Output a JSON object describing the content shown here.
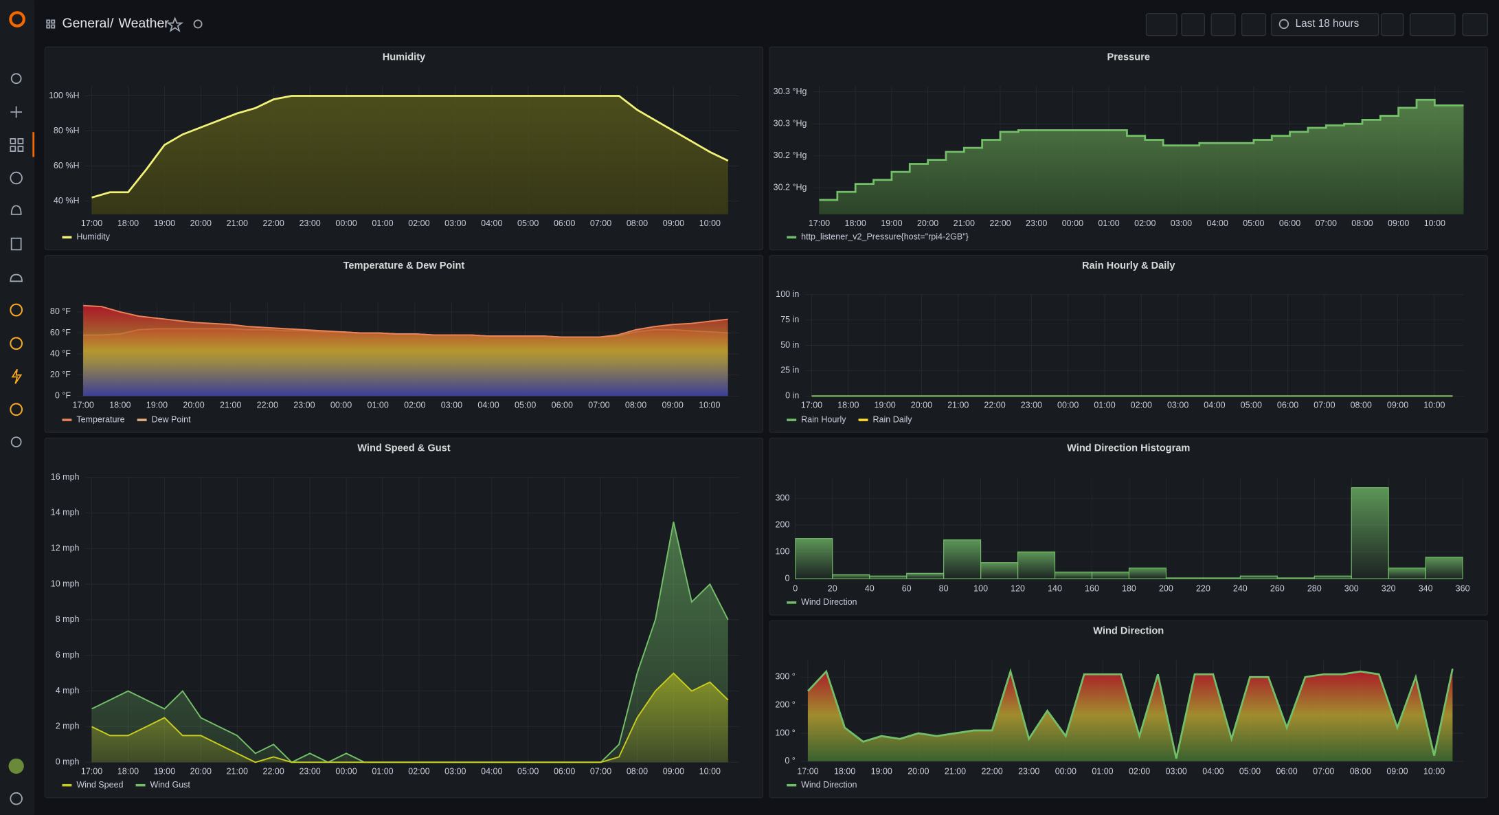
{
  "header": {
    "folder": "General",
    "separator": "/",
    "title": "Weather",
    "time_range": "Last 18 hours"
  },
  "chart_data": [
    {
      "type": "line",
      "title": "Humidity",
      "categories": [
        "17:00",
        null,
        "18:00",
        null,
        "19:00",
        null,
        "20:00",
        null,
        "21:00",
        null,
        "22:00",
        null,
        "23:00",
        null,
        "00:00",
        null,
        "01:00",
        null,
        "02:00",
        null,
        "03:00",
        null,
        "04:00",
        null,
        "05:00",
        null,
        "06:00",
        null,
        "07:00",
        null,
        "08:00",
        null,
        "09:00",
        null,
        "10:00",
        null
      ],
      "series": [
        {
          "name": "Humidity",
          "color": "#F2F27A",
          "values": [
            42,
            45,
            45,
            58,
            72,
            78,
            82,
            86,
            90,
            93,
            98,
            100,
            100,
            100,
            100,
            100,
            100,
            100,
            100,
            100,
            100,
            100,
            100,
            100,
            100,
            100,
            100,
            100,
            100,
            100,
            92,
            86,
            80,
            74,
            68,
            63
          ]
        }
      ],
      "ylim": [
        32.4,
        105.5
      ],
      "yticks": [
        {
          "value": 40,
          "label": "40 %H"
        },
        {
          "value": 60,
          "label": "60 %H"
        },
        {
          "value": 80,
          "label": "80 %H"
        },
        {
          "value": 100,
          "label": "100 %H"
        }
      ],
      "fill_gradient": [
        "#55561c",
        "#3b3c15"
      ],
      "grid": true
    },
    {
      "type": "line",
      "title": "Pressure",
      "categories": [
        "17:00",
        null,
        "18:00",
        null,
        "19:00",
        null,
        "20:00",
        null,
        "21:00",
        null,
        "22:00",
        null,
        "23:00",
        null,
        "00:00",
        null,
        "01:00",
        null,
        "02:00",
        null,
        "03:00",
        null,
        "04:00",
        null,
        "05:00",
        null,
        "06:00",
        null,
        "07:00",
        null,
        "08:00",
        null,
        "09:00",
        null,
        "10:00",
        null
      ],
      "series": [
        {
          "name": "http_listener_v2_Pressure{host=\"rpi4-2GB\"}",
          "color": "#73BF69",
          "values": [
            30.165,
            30.175,
            30.185,
            30.19,
            30.2,
            30.21,
            30.215,
            30.225,
            30.23,
            30.24,
            30.25,
            30.252,
            30.252,
            30.252,
            30.252,
            30.252,
            30.252,
            30.245,
            30.24,
            30.233,
            30.233,
            30.236,
            30.236,
            30.236,
            30.24,
            30.245,
            30.25,
            30.255,
            30.258,
            30.26,
            30.265,
            30.27,
            30.28,
            30.29,
            30.283,
            30.283
          ]
        }
      ],
      "ylim": [
        30.147,
        30.307
      ],
      "yticks": [
        {
          "value": 30.18,
          "label": "30.2 °Hg"
        },
        {
          "value": 30.22,
          "label": "30.2 °Hg"
        },
        {
          "value": 30.26,
          "label": "30.3 °Hg"
        },
        {
          "value": 30.3,
          "label": "30.3 °Hg"
        }
      ],
      "step": true,
      "fill_gradient": [
        "#5e8f4f",
        "#2f4a2a"
      ],
      "grid": true
    },
    {
      "type": "line",
      "title": "Temperature & Dew Point",
      "categories": [
        "17:00",
        null,
        "18:00",
        null,
        "19:00",
        null,
        "20:00",
        null,
        "21:00",
        null,
        "22:00",
        null,
        "23:00",
        null,
        "00:00",
        null,
        "01:00",
        null,
        "02:00",
        null,
        "03:00",
        null,
        "04:00",
        null,
        "05:00",
        null,
        "06:00",
        null,
        "07:00",
        null,
        "08:00",
        null,
        "09:00",
        null,
        "10:00",
        null
      ],
      "series": [
        {
          "name": "Temperature",
          "color": "#E8835A",
          "values": [
            86,
            85,
            80,
            76,
            74,
            72,
            70,
            69,
            68,
            66,
            65,
            64,
            63,
            62,
            61,
            60,
            60,
            59,
            59,
            58,
            58,
            58,
            57,
            57,
            57,
            57,
            56,
            56,
            56,
            58,
            63,
            66,
            68,
            69,
            71,
            73
          ]
        },
        {
          "name": "Dew Point",
          "color": "#E8B07A",
          "values": [
            58,
            58,
            59,
            63,
            64,
            64,
            64,
            64,
            64,
            63,
            63,
            62,
            62,
            61,
            61,
            60,
            60,
            59,
            59,
            58,
            58,
            58,
            57,
            57,
            57,
            57,
            56,
            56,
            56,
            57,
            61,
            63,
            63,
            62,
            61,
            60
          ]
        }
      ],
      "ylim": [
        0,
        89.1
      ],
      "yticks": [
        {
          "value": 0,
          "label": "0 °F"
        },
        {
          "value": 20,
          "label": "20 °F"
        },
        {
          "value": 40,
          "label": "40 °F"
        },
        {
          "value": 60,
          "label": "60 °F"
        },
        {
          "value": 80,
          "label": "80 °F"
        }
      ],
      "fill_gradient": [
        "#C4162A",
        "#B8A030",
        "#3b3f9a"
      ],
      "grid": true
    },
    {
      "type": "line",
      "title": "Rain Hourly & Daily",
      "categories": [
        "17:00",
        null,
        "18:00",
        null,
        "19:00",
        null,
        "20:00",
        null,
        "21:00",
        null,
        "22:00",
        null,
        "23:00",
        null,
        "00:00",
        null,
        "01:00",
        null,
        "02:00",
        null,
        "03:00",
        null,
        "04:00",
        null,
        "05:00",
        null,
        "06:00",
        null,
        "07:00",
        null,
        "08:00",
        null,
        "09:00",
        null,
        "10:00",
        null
      ],
      "series": [
        {
          "name": "Rain Hourly",
          "color": "#73BF69",
          "values": [
            0,
            0,
            0,
            0,
            0,
            0,
            0,
            0,
            0,
            0,
            0,
            0,
            0,
            0,
            0,
            0,
            0,
            0,
            0,
            0,
            0,
            0,
            0,
            0,
            0,
            0,
            0,
            0,
            0,
            0,
            0,
            0,
            0,
            0,
            0,
            0
          ]
        },
        {
          "name": "Rain Daily",
          "color": "#FADE2A",
          "values": [
            0,
            0,
            0,
            0,
            0,
            0,
            0,
            0,
            0,
            0,
            0,
            0,
            0,
            0,
            0,
            0,
            0,
            0,
            0,
            0,
            0,
            0,
            0,
            0,
            0,
            0,
            0,
            0,
            0,
            0,
            0,
            0,
            0,
            0,
            0,
            0
          ]
        }
      ],
      "ylim": [
        0,
        100
      ],
      "yticks": [
        {
          "value": 0,
          "label": "0 in"
        },
        {
          "value": 25,
          "label": "25 in"
        },
        {
          "value": 50,
          "label": "50 in"
        },
        {
          "value": 75,
          "label": "75 in"
        },
        {
          "value": 100,
          "label": "100 in"
        }
      ],
      "grid": true
    },
    {
      "type": "line",
      "title": "Wind Speed & Gust",
      "categories": [
        "17:00",
        null,
        "18:00",
        null,
        "19:00",
        null,
        "20:00",
        null,
        "21:00",
        null,
        "22:00",
        null,
        "23:00",
        null,
        "00:00",
        null,
        "01:00",
        null,
        "02:00",
        null,
        "03:00",
        null,
        "04:00",
        null,
        "05:00",
        null,
        "06:00",
        null,
        "07:00",
        null,
        "08:00",
        null,
        "09:00",
        null,
        "10:00",
        null
      ],
      "series": [
        {
          "name": "Wind Speed",
          "color": "#C8CC1E",
          "values": [
            2,
            1.5,
            1.5,
            2,
            2.5,
            1.5,
            1.5,
            1,
            0.5,
            0,
            0.3,
            0,
            0,
            0,
            0,
            0,
            0,
            0,
            0,
            0,
            0,
            0,
            0,
            0,
            0,
            0,
            0,
            0,
            0,
            0.3,
            2.5,
            4,
            5,
            4,
            4.5,
            3.5
          ]
        },
        {
          "name": "Wind Gust",
          "color": "#73BF69",
          "values": [
            3,
            3.5,
            4,
            3.5,
            3,
            4,
            2.5,
            2,
            1.5,
            0.5,
            1,
            0,
            0.5,
            0,
            0.5,
            0,
            0,
            0,
            0,
            0,
            0,
            0,
            0,
            0,
            0,
            0,
            0,
            0,
            0,
            1,
            5,
            8,
            13.5,
            9,
            10,
            8
          ]
        }
      ],
      "ylim": [
        0,
        16
      ],
      "yticks": [
        {
          "value": 0,
          "label": "0 mph"
        },
        {
          "value": 2,
          "label": "2 mph"
        },
        {
          "value": 4,
          "label": "4 mph"
        },
        {
          "value": 6,
          "label": "6 mph"
        },
        {
          "value": 8,
          "label": "8 mph"
        },
        {
          "value": 10,
          "label": "10 mph"
        },
        {
          "value": 12,
          "label": "12 mph"
        },
        {
          "value": 14,
          "label": "14 mph"
        },
        {
          "value": 16,
          "label": "16 mph"
        }
      ],
      "grid": true
    },
    {
      "type": "histogram",
      "title": "Wind Direction Histogram",
      "bins": [
        0,
        20,
        40,
        60,
        80,
        100,
        120,
        140,
        160,
        180,
        200,
        220,
        240,
        260,
        280,
        300,
        320,
        340,
        360
      ],
      "series": [
        {
          "name": "Wind Direction",
          "color": "#73BF69",
          "values": [
            150,
            15,
            10,
            20,
            145,
            60,
            100,
            25,
            25,
            40,
            3,
            3,
            10,
            3,
            10,
            340,
            40,
            80
          ]
        }
      ],
      "xlim": [
        0,
        360
      ],
      "xticks": [
        0,
        20,
        40,
        60,
        80,
        100,
        120,
        140,
        160,
        180,
        200,
        220,
        240,
        260,
        280,
        300,
        320,
        340,
        360
      ],
      "ylim": [
        0,
        375
      ],
      "yticks": [
        0,
        100,
        200,
        300
      ],
      "grid": true
    },
    {
      "type": "line",
      "title": "Wind Direction",
      "categories": [
        "17:00",
        null,
        "18:00",
        null,
        "19:00",
        null,
        "20:00",
        null,
        "21:00",
        null,
        "22:00",
        null,
        "23:00",
        null,
        "00:00",
        null,
        "01:00",
        null,
        "02:00",
        null,
        "03:00",
        null,
        "04:00",
        null,
        "05:00",
        null,
        "06:00",
        null,
        "07:00",
        null,
        "08:00",
        null,
        "09:00",
        null,
        "10:00",
        null
      ],
      "series": [
        {
          "name": "Wind Direction",
          "color": "#73BF69",
          "values": [
            250,
            320,
            120,
            70,
            90,
            80,
            100,
            90,
            100,
            110,
            110,
            320,
            80,
            180,
            90,
            310,
            310,
            310,
            90,
            310,
            10,
            310,
            310,
            80,
            300,
            300,
            120,
            300,
            310,
            310,
            320,
            310,
            120,
            300,
            20,
            330
          ]
        }
      ],
      "ylim": [
        0,
        361
      ],
      "yticks": [
        {
          "value": 0,
          "label": "0 °"
        },
        {
          "value": 100,
          "label": "100 °"
        },
        {
          "value": 200,
          "label": "200 °"
        },
        {
          "value": 300,
          "label": "300 °"
        }
      ],
      "fill_gradient": [
        "#C4162A",
        "#B8A030",
        "#3f6e32"
      ],
      "grid": true
    }
  ]
}
